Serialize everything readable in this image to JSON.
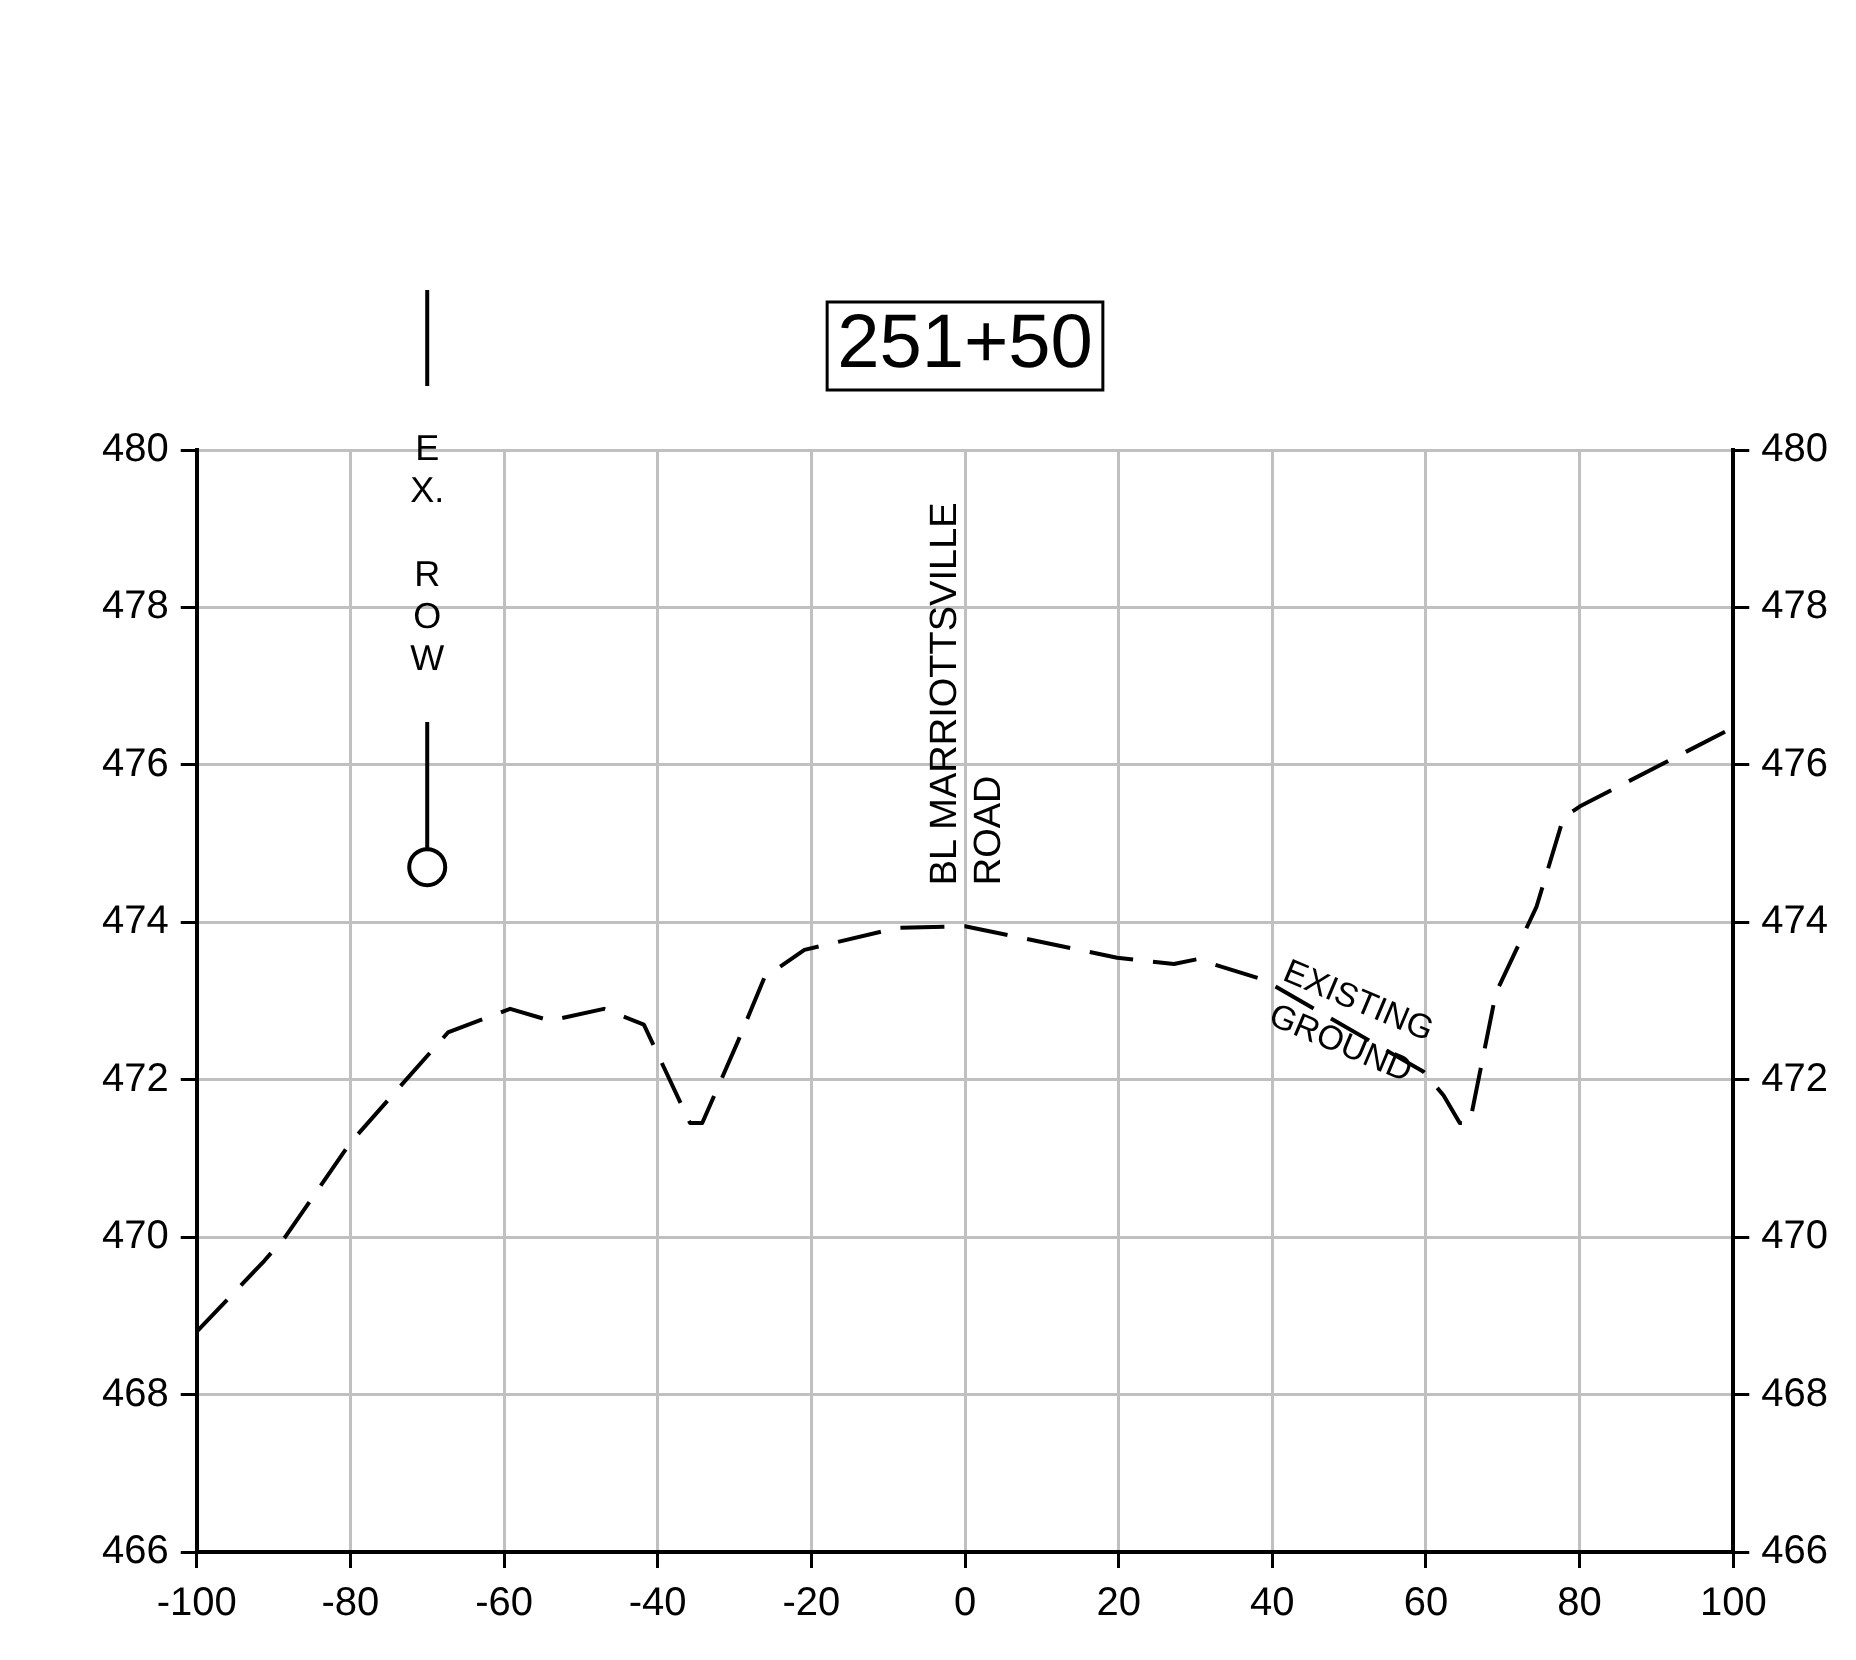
{
  "chart_data": {
    "type": "line",
    "title": "251+50",
    "series": [
      {
        "color": "#000000",
        "line_style": "dashed",
        "x": [
          -100,
          -91.2,
          -88.5,
          -80,
          -67.3,
          -59.2,
          -54,
          -47,
          -41.8,
          -35.8,
          -34.2,
          -29.5,
          -26.1,
          -20.9,
          -8.8,
          0,
          19.8,
          27.2,
          30.2,
          38.9,
          59.7,
          62.3,
          64.4,
          65.7,
          69.1,
          74.4,
          77.9,
          80,
          99.5,
          100
        ],
        "values": [
          468.8,
          469.7,
          470.0,
          471.2,
          472.6,
          472.9,
          472.75,
          472.9,
          472.7,
          471.45,
          471.45,
          472.5,
          473.3,
          473.65,
          473.93,
          473.95,
          473.55,
          473.47,
          473.53,
          473.27,
          472.1,
          471.8,
          471.45,
          471.45,
          473.1,
          474.2,
          475.33,
          475.47,
          476.45,
          476.45
        ]
      },
      {
        "type": "scatter",
        "name": "EX. ROW",
        "color": "#000000",
        "marker": "circle",
        "x": [
          -70
        ],
        "values": [
          474.7
        ]
      }
    ],
    "xlim": [
      -100,
      100
    ],
    "xticks": [
      -100,
      -80,
      -60,
      -40,
      -20,
      0,
      20,
      40,
      60,
      80,
      100
    ],
    "ylim": [
      466,
      480
    ],
    "yticks": [
      466,
      468,
      470,
      472,
      474,
      476,
      478,
      480
    ],
    "y2lim": [
      466,
      480
    ],
    "y2ticks": [
      466,
      468,
      470,
      472,
      474,
      476,
      478,
      480
    ],
    "grid": true,
    "legend": false,
    "marker": "none",
    "annotations": [
      "BL MARRIOTTSVILLE ROAD",
      "EXISTING GROUND"
    ]
  }
}
